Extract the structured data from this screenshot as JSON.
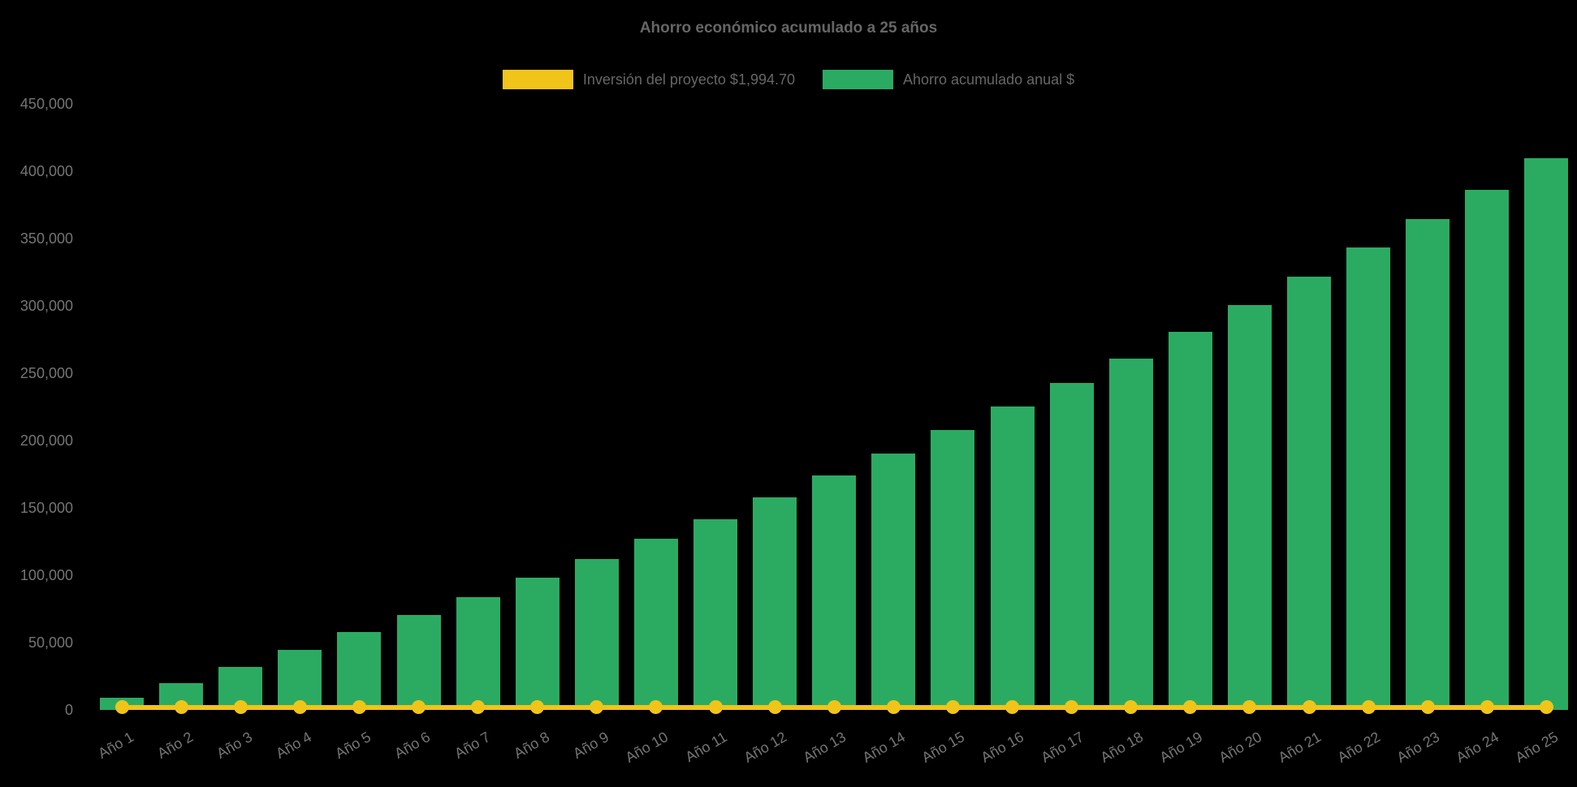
{
  "title": "Ahorro económico acumulado a 25 años",
  "legend": {
    "investment": {
      "label": "Inversión del proyecto $1,994.70",
      "color": "#f0c419"
    },
    "savings": {
      "label": "Ahorro acumulado anual $",
      "color": "#2bab62"
    }
  },
  "chart_data": {
    "type": "bar",
    "title": "Ahorro económico acumulado a 25 años",
    "categories": [
      "Año 1",
      "Año 2",
      "Año 3",
      "Año 4",
      "Año 5",
      "Año 6",
      "Año 7",
      "Año 8",
      "Año 9",
      "Año 10",
      "Año 11",
      "Año 12",
      "Año 13",
      "Año 14",
      "Año 15",
      "Año 16",
      "Año 17",
      "Año 18",
      "Año 19",
      "Año 20",
      "Año 21",
      "Año 22",
      "Año 23",
      "Año 24",
      "Año 25"
    ],
    "series": [
      {
        "name": "Inversión del proyecto $1,994.70",
        "type": "line",
        "color": "#f0c419",
        "values": [
          1994.7,
          1994.7,
          1994.7,
          1994.7,
          1994.7,
          1994.7,
          1994.7,
          1994.7,
          1994.7,
          1994.7,
          1994.7,
          1994.7,
          1994.7,
          1994.7,
          1994.7,
          1994.7,
          1994.7,
          1994.7,
          1994.7,
          1994.7,
          1994.7,
          1994.7,
          1994.7,
          1994.7,
          1994.7
        ]
      },
      {
        "name": "Ahorro acumulado anual $",
        "type": "bar",
        "color": "#2bab62",
        "values": [
          9000,
          20000,
          32000,
          44500,
          58000,
          70500,
          84000,
          98000,
          112000,
          127000,
          141500,
          158000,
          174000,
          190500,
          208000,
          225500,
          243000,
          261000,
          280500,
          300500,
          321500,
          343500,
          364500,
          386000,
          409500
        ]
      }
    ],
    "xlabel": "",
    "ylabel": "",
    "ylim": [
      0,
      450000
    ],
    "ytick_step": 50000,
    "grid": false,
    "legend_position": "top",
    "background_color": "#000000",
    "title_color": "#666666",
    "tick_label_color": "#757575"
  }
}
